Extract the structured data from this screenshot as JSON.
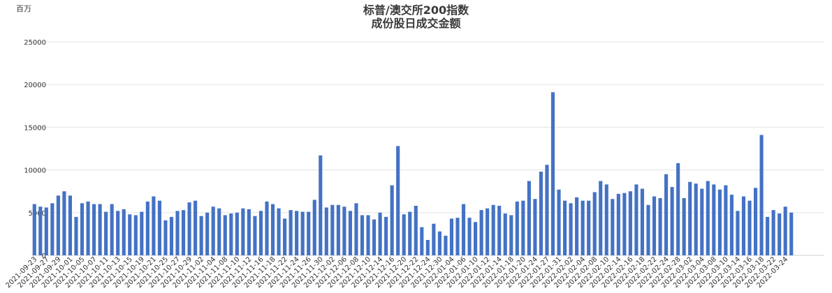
{
  "chart_data": {
    "type": "bar",
    "title": "标普/澳交所200指数",
    "subtitle": "成份股日成交金额",
    "unit_label": "百万",
    "ylim": [
      0,
      25000
    ],
    "yticks": [
      0,
      5000,
      10000,
      15000,
      20000,
      25000
    ],
    "grid": true,
    "bar_color": "#4472c4",
    "x_tick_labels": [
      "2021-09-23",
      "2021-09-27",
      "2021-09-29",
      "2021-10-01",
      "2021-10-05",
      "2021-10-07",
      "2021-10-11",
      "2021-10-13",
      "2021-10-15",
      "2021-10-19",
      "2021-10-21",
      "2021-10-25",
      "2021-10-27",
      "2021-10-29",
      "2021-11-02",
      "2021-11-04",
      "2021-11-08",
      "2021-11-10",
      "2021-11-12",
      "2021-11-16",
      "2021-11-18",
      "2021-11-22",
      "2021-11-24",
      "2021-11-26",
      "2021-11-30",
      "2021-12-02",
      "2021-12-06",
      "2021-12-08",
      "2021-12-10",
      "2021-12-14",
      "2021-12-16",
      "2021-12-20",
      "2021-12-22",
      "2021-12-24",
      "2021-12-30",
      "2022-01-04",
      "2022-01-06",
      "2022-01-10",
      "2022-01-12",
      "2022-01-14",
      "2022-01-18",
      "2022-01-20",
      "2022-01-24",
      "2022-01-27",
      "2022-01-31",
      "2022-02-02",
      "2022-02-04",
      "2022-02-08",
      "2022-02-10",
      "2022-02-14",
      "2022-02-16",
      "2022-02-18",
      "2022-02-22",
      "2022-02-24",
      "2022-02-28",
      "2022-03-02",
      "2022-03-04",
      "2022-03-08",
      "2022-03-10",
      "2022-03-14",
      "2022-03-16",
      "2022-03-18",
      "2022-03-22",
      "2022-03-24"
    ],
    "values": [
      6000,
      5700,
      5600,
      6100,
      7000,
      7500,
      7000,
      4500,
      6100,
      6300,
      6000,
      6000,
      5100,
      6000,
      5200,
      5400,
      4800,
      4700,
      5100,
      6300,
      6900,
      6400,
      4100,
      4500,
      5200,
      5300,
      6200,
      6400,
      4600,
      5000,
      5700,
      5500,
      4700,
      4900,
      5000,
      5500,
      5400,
      4600,
      5200,
      6300,
      6000,
      5500,
      4300,
      5300,
      5200,
      5100,
      5100,
      6500,
      11700,
      5600,
      5900,
      5900,
      5700,
      5200,
      6100,
      4700,
      4700,
      4200,
      5000,
      4500,
      8200,
      12800,
      4800,
      5100,
      5800,
      3300,
      1800,
      3700,
      2800,
      2300,
      4300,
      4400,
      6000,
      4400,
      3900,
      5300,
      5500,
      5900,
      5800,
      4900,
      4700,
      6300,
      6400,
      8700,
      6600,
      9800,
      10600,
      19100,
      7700,
      6400,
      6100,
      6800,
      6400,
      6400,
      7400,
      8700,
      8300,
      6600,
      7200,
      7300,
      7500,
      8300,
      7800,
      5900,
      6900,
      6700,
      9500,
      8000,
      10800,
      6700,
      8600,
      8400,
      7800,
      8700,
      8300,
      7700,
      8200,
      7100,
      5200,
      6900,
      6400,
      7900,
      14100,
      4500,
      5300,
      4900,
      5700,
      5000
    ]
  }
}
